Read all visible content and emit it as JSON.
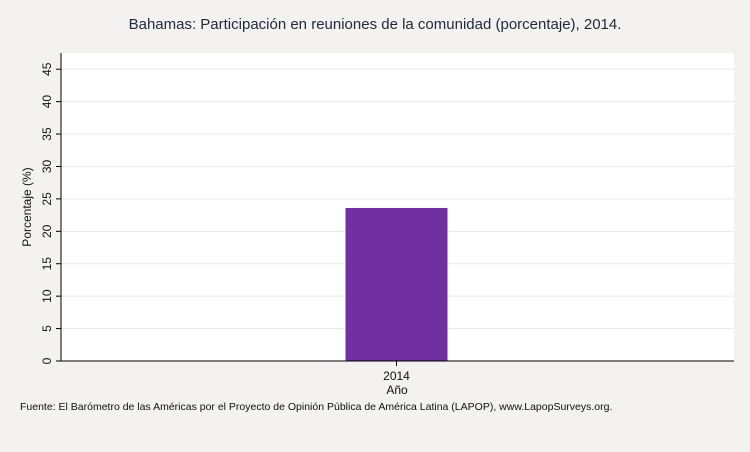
{
  "chart_data": {
    "type": "bar",
    "title": "Bahamas: Participación en reuniones de la comunidad (porcentaje), 2014.",
    "categories": [
      "2014"
    ],
    "values": [
      23.6
    ],
    "xlabel": "Año",
    "ylabel": "Porcentaje (%)",
    "ylim": [
      0,
      47.5
    ],
    "yticks": [
      0,
      5,
      10,
      15,
      20,
      25,
      30,
      35,
      40,
      45
    ],
    "grid": true,
    "bar_color": "#7030a0",
    "source": "Fuente: El Barómetro de las Américas por el Proyecto de Opinión Pública de América Latina (LAPOP), www.LapopSurveys.org."
  }
}
